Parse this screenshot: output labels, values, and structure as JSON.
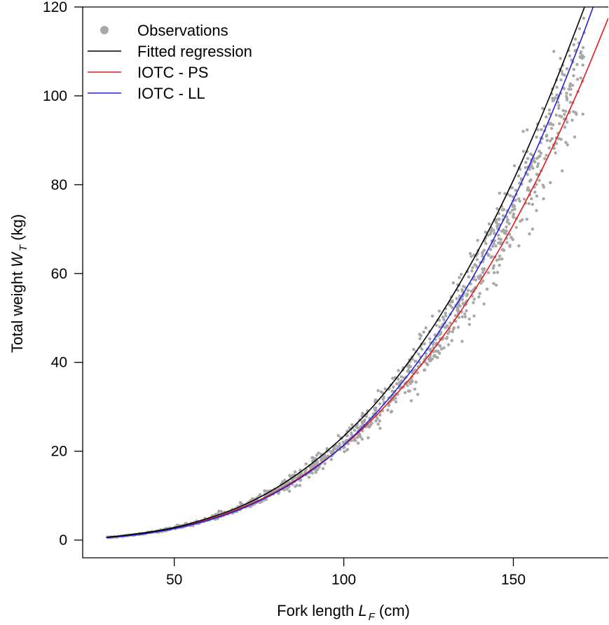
{
  "chart_data": {
    "type": "scatter",
    "title": "",
    "xlabel": {
      "prefix": "Fork length ",
      "symbol": "L",
      "subscript": "F",
      "suffix": " (cm)"
    },
    "ylabel": {
      "prefix": "Total weight ",
      "symbol": "W",
      "subscript": "T",
      "suffix": " (kg)"
    },
    "xlim": [
      23,
      178
    ],
    "ylim": [
      -4,
      120
    ],
    "x_ticks": [
      50,
      100,
      150
    ],
    "y_ticks": [
      0,
      20,
      40,
      60,
      80,
      100,
      120
    ],
    "legend_position": "top-left",
    "legend": [
      {
        "label": "Observations",
        "kind": "point",
        "color": "#a8a8a8"
      },
      {
        "label": "Fitted regression",
        "kind": "line",
        "color": "#000000"
      },
      {
        "label": "IOTC - PS",
        "kind": "line",
        "color": "#e41a1c"
      },
      {
        "label": "IOTC - LL",
        "kind": "line",
        "color": "#2222dd"
      }
    ],
    "series": [
      {
        "name": "Fitted regression",
        "color": "#000000",
        "x": [
          30,
          40,
          50,
          60,
          70,
          80,
          90,
          100,
          110,
          120,
          130,
          140,
          150,
          160,
          170,
          175
        ],
        "y": [
          0.6,
          1.5,
          2.8,
          4.9,
          7.7,
          11.7,
          16.9,
          23.4,
          31.3,
          41,
          52.4,
          65.7,
          81,
          98.5,
          118,
          128.5
        ]
      },
      {
        "name": "IOTC - PS",
        "color": "#e41a1c",
        "x": [
          30,
          40,
          50,
          60,
          70,
          80,
          90,
          100,
          110,
          120,
          130,
          140,
          150,
          160,
          170,
          178
        ],
        "y": [
          0.55,
          1.35,
          2.65,
          4.6,
          7.3,
          10.9,
          15.6,
          21.3,
          28.4,
          36.8,
          46.6,
          58,
          71,
          85.9,
          102.7,
          117.5
        ]
      },
      {
        "name": "IOTC - LL",
        "color": "#2222dd",
        "x": [
          30,
          40,
          50,
          60,
          70,
          80,
          90,
          100,
          110,
          120,
          130,
          140,
          150,
          160,
          170,
          178
        ],
        "y": [
          0.5,
          1.3,
          2.55,
          4.45,
          7.1,
          10.7,
          15.4,
          21.4,
          29,
          38.2,
          49.1,
          61.8,
          76.6,
          93.6,
          112.7,
          129.5
        ]
      }
    ],
    "observations": {
      "name": "Observations",
      "color": "#a8a8a8",
      "n": 1200,
      "x_range": [
        30,
        171
      ],
      "model": {
        "a": 1.965e-05,
        "b": 3.023
      },
      "relative_spread": 0.06
    }
  }
}
